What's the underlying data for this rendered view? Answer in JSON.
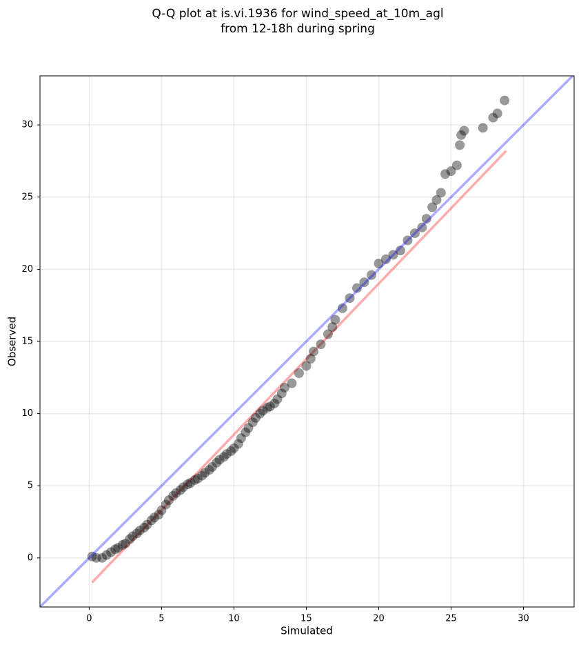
{
  "chart_data": {
    "type": "scatter",
    "title": [
      "Q-Q plot at is.vi.1936 for wind_speed_at_10m_agl",
      "from 12-18h during spring"
    ],
    "xlabel": "Simulated",
    "ylabel": "Observed",
    "xlim": [
      -3.4,
      33.5
    ],
    "ylim": [
      -3.4,
      33.4
    ],
    "xticks": [
      0,
      5,
      10,
      15,
      20,
      25,
      30
    ],
    "yticks": [
      0,
      5,
      10,
      15,
      20,
      25,
      30
    ],
    "grid": true,
    "series": [
      {
        "color": "#000000",
        "alpha": 0.4,
        "x": [
          0.2,
          0.5,
          0.9,
          1.2,
          1.5,
          1.8,
          2.0,
          2.3,
          2.5,
          2.8,
          3.0,
          3.3,
          3.5,
          3.8,
          4.0,
          4.3,
          4.5,
          4.8,
          5.0,
          5.3,
          5.5,
          5.8,
          6.0,
          6.3,
          6.5,
          6.8,
          7.0,
          7.3,
          7.5,
          7.8,
          8.0,
          8.3,
          8.5,
          8.8,
          9.0,
          9.3,
          9.5,
          9.8,
          10.0,
          10.3,
          10.5,
          10.8,
          11.0,
          11.3,
          11.5,
          11.8,
          12.0,
          12.3,
          12.5,
          12.8,
          13.0,
          13.3,
          13.5,
          14.0,
          14.5,
          15.0,
          15.3,
          15.5,
          16.0,
          16.5,
          16.8,
          17.0,
          17.5,
          18.0,
          18.5,
          19.0,
          19.5,
          20.0,
          20.5,
          21.0,
          21.5,
          22.0,
          22.5,
          23.0,
          23.3,
          23.7,
          24.0,
          24.3,
          24.6,
          25.0,
          25.4,
          25.6,
          25.7,
          25.9,
          27.2,
          27.9,
          28.2,
          28.7
        ],
        "y": [
          0.1,
          0.0,
          0.0,
          0.2,
          0.4,
          0.6,
          0.7,
          0.9,
          1.0,
          1.3,
          1.5,
          1.7,
          1.9,
          2.1,
          2.3,
          2.6,
          2.8,
          3.0,
          3.3,
          3.7,
          4.0,
          4.3,
          4.5,
          4.7,
          4.9,
          5.1,
          5.2,
          5.4,
          5.5,
          5.7,
          5.9,
          6.1,
          6.3,
          6.6,
          6.8,
          7.0,
          7.2,
          7.4,
          7.6,
          7.9,
          8.3,
          8.7,
          9.0,
          9.4,
          9.7,
          10.0,
          10.2,
          10.4,
          10.5,
          10.7,
          11.0,
          11.4,
          11.8,
          12.1,
          12.8,
          13.3,
          13.8,
          14.3,
          14.8,
          15.5,
          16.0,
          16.5,
          17.3,
          18.0,
          18.7,
          19.1,
          19.6,
          20.4,
          20.7,
          21.0,
          21.3,
          22.0,
          22.5,
          22.9,
          23.5,
          24.3,
          24.8,
          25.3,
          26.6,
          26.8,
          27.2,
          28.6,
          29.3,
          29.6,
          29.8,
          30.5,
          30.8,
          31.7
        ]
      }
    ],
    "lines": [
      {
        "color": "#ff0000",
        "alpha": 0.33,
        "x": [
          0.2,
          28.8
        ],
        "y": [
          -1.7,
          28.2
        ]
      },
      {
        "color": "#0000ff",
        "alpha": 0.33,
        "x": [
          -3.4,
          33.5
        ],
        "y": [
          -3.4,
          33.5
        ]
      }
    ]
  }
}
